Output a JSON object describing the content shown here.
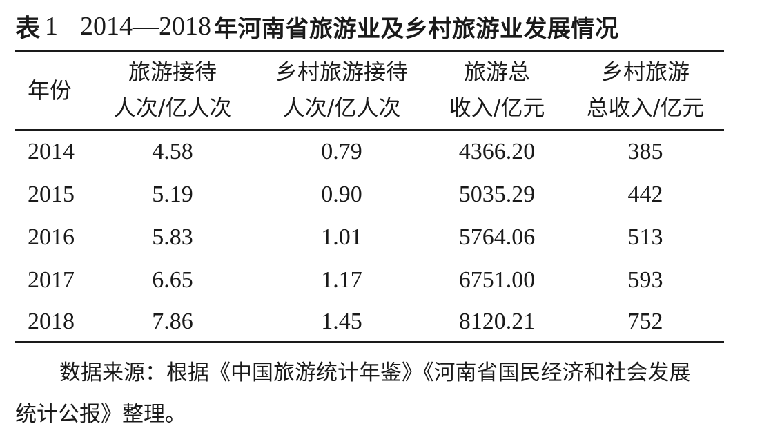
{
  "title": {
    "label": "表",
    "number": "1",
    "years": "2014—2018",
    "text": "年河南省旅游业及乡村旅游业发展情况"
  },
  "table": {
    "headers": [
      {
        "line1": "年份",
        "line2": ""
      },
      {
        "line1": "旅游接待",
        "line2": "人次/亿人次"
      },
      {
        "line1": "乡村旅游接待",
        "line2": "人次/亿人次"
      },
      {
        "line1": "旅游总",
        "line2": "收入/亿元"
      },
      {
        "line1": "乡村旅游",
        "line2": "总收入/亿元"
      }
    ],
    "rows": [
      [
        "2014",
        "4.58",
        "0.79",
        "4366.20",
        "385"
      ],
      [
        "2015",
        "5.19",
        "0.90",
        "5035.29",
        "442"
      ],
      [
        "2016",
        "5.83",
        "1.01",
        "5764.06",
        "513"
      ],
      [
        "2017",
        "6.65",
        "1.17",
        "6751.00",
        "593"
      ],
      [
        "2018",
        "7.86",
        "1.45",
        "8120.21",
        "752"
      ]
    ]
  },
  "source": {
    "line1": "数据来源：根据《中国旅游统计年鉴》《河南省国民经济和社会发展",
    "line2": "统计公报》整理。"
  }
}
